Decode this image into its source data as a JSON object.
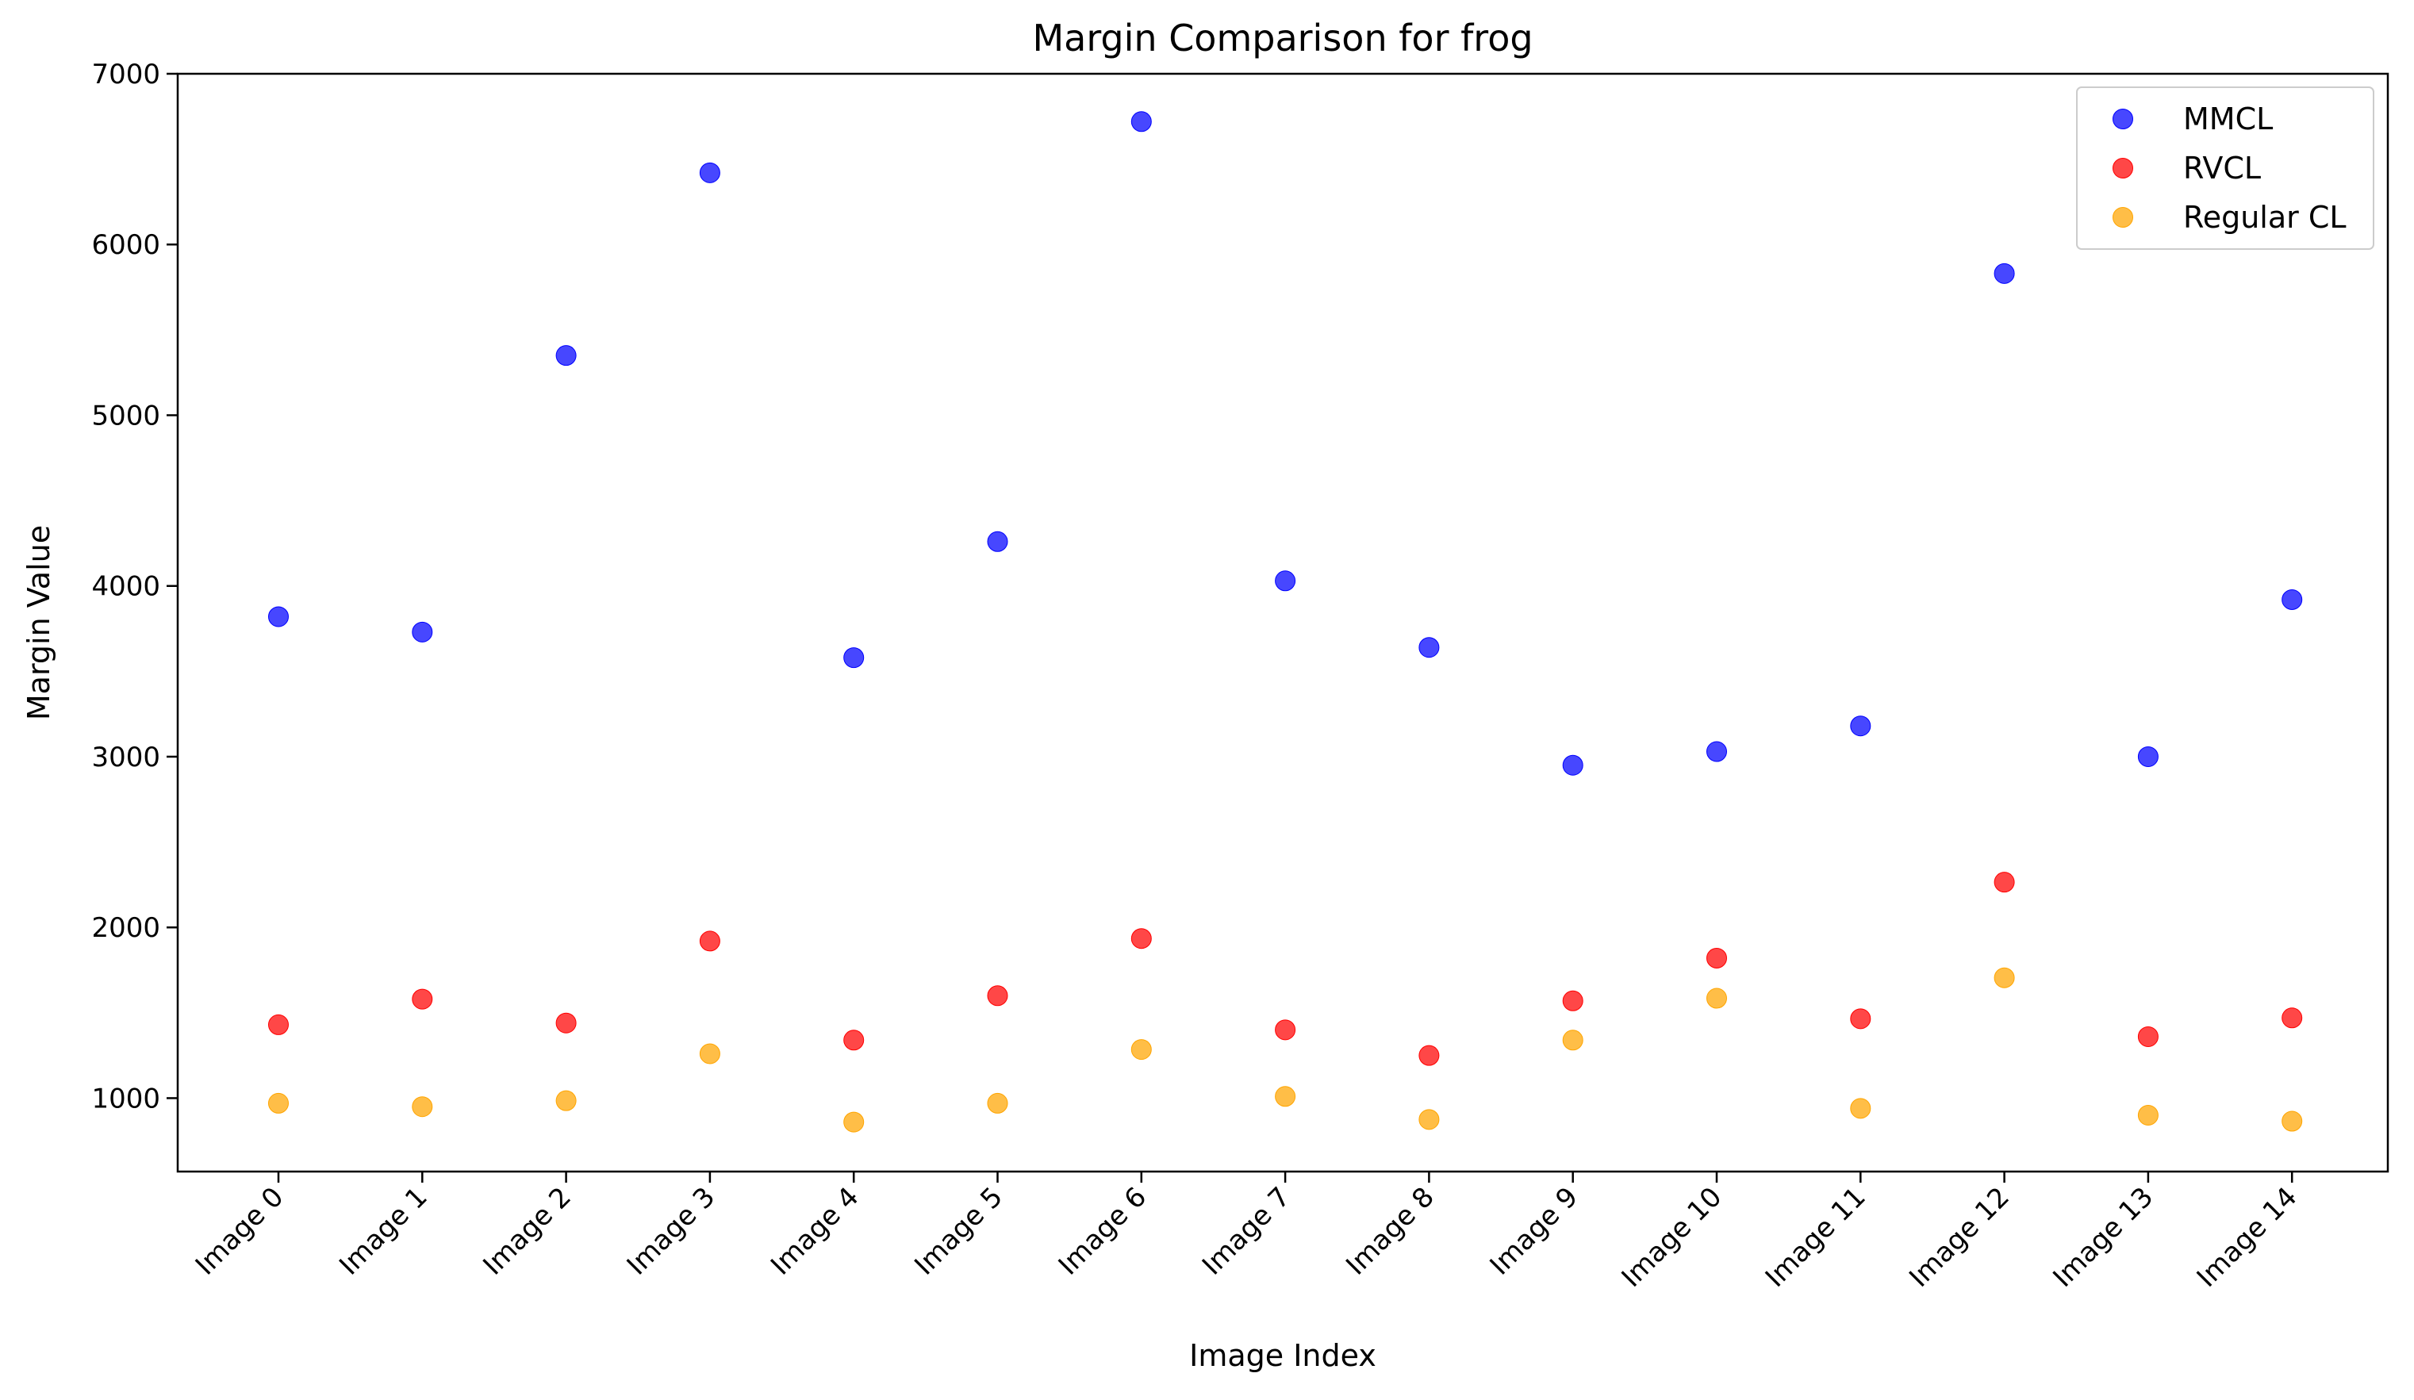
{
  "chart_data": {
    "type": "scatter",
    "title": "Margin Comparison for frog",
    "xlabel": "Image Index",
    "ylabel": "Margin Value",
    "categories": [
      "Image 0",
      "Image 1",
      "Image 2",
      "Image 3",
      "Image 4",
      "Image 5",
      "Image 6",
      "Image 7",
      "Image 8",
      "Image 9",
      "Image 10",
      "Image 11",
      "Image 12",
      "Image 13",
      "Image 14"
    ],
    "ylim": [
      570,
      7000
    ],
    "yticks": [
      1000,
      2000,
      3000,
      4000,
      5000,
      6000,
      7000
    ],
    "grid": false,
    "legend_position": "top-right",
    "series": [
      {
        "name": "MMCL",
        "color": "#0000ff",
        "values": [
          3820,
          3730,
          5350,
          6420,
          3580,
          4260,
          6720,
          4030,
          3640,
          2950,
          3030,
          3180,
          5830,
          3000,
          3920
        ]
      },
      {
        "name": "RVCL",
        "color": "#ff0000",
        "values": [
          1430,
          1580,
          1440,
          1920,
          1340,
          1600,
          1935,
          1400,
          1250,
          1570,
          1820,
          1465,
          2265,
          1360,
          1470
        ]
      },
      {
        "name": "Regular CL",
        "color": "#ffa500",
        "values": [
          970,
          950,
          985,
          1260,
          860,
          970,
          1285,
          1010,
          875,
          1340,
          1585,
          940,
          1705,
          900,
          865
        ]
      }
    ]
  }
}
